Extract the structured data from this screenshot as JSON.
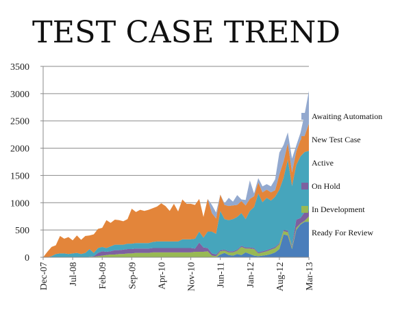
{
  "chart_data": {
    "type": "area",
    "stacked": true,
    "title": "TEST CASE TREND",
    "xlabel": "",
    "ylabel": "",
    "ylim": [
      0,
      3500
    ],
    "yticks": [
      0,
      500,
      1000,
      1500,
      2000,
      2500,
      3000,
      3500
    ],
    "grid": "horizontal",
    "legend_position": "right",
    "x_tick_labels": [
      "Dec-07",
      "Jul-08",
      "Feb-09",
      "Sep-09",
      "Apr-10",
      "Nov-10",
      "Jun-11",
      "Jan-12",
      "Aug-12",
      "Mar-13"
    ],
    "x_tick_index": [
      0,
      7,
      14,
      21,
      28,
      35,
      42,
      49,
      56,
      63
    ],
    "x": [
      "Dec-07",
      "Jan-08",
      "Feb-08",
      "Mar-08",
      "Apr-08",
      "May-08",
      "Jun-08",
      "Jul-08",
      "Aug-08",
      "Sep-08",
      "Oct-08",
      "Nov-08",
      "Dec-08",
      "Jan-09",
      "Feb-09",
      "Mar-09",
      "Apr-09",
      "May-09",
      "Jun-09",
      "Jul-09",
      "Aug-09",
      "Sep-09",
      "Oct-09",
      "Nov-09",
      "Dec-09",
      "Jan-10",
      "Feb-10",
      "Mar-10",
      "Apr-10",
      "May-10",
      "Jun-10",
      "Jul-10",
      "Aug-10",
      "Sep-10",
      "Oct-10",
      "Nov-10",
      "Dec-10",
      "Jan-11",
      "Feb-11",
      "Mar-11",
      "Apr-11",
      "May-11",
      "Jun-11",
      "Jul-11",
      "Aug-11",
      "Sep-11",
      "Oct-11",
      "Nov-11",
      "Dec-11",
      "Jan-12",
      "Feb-12",
      "Mar-12",
      "Apr-12",
      "May-12",
      "Jun-12",
      "Jul-12",
      "Aug-12",
      "Sep-12",
      "Oct-12",
      "Nov-12",
      "Dec-12",
      "Jan-13",
      "Feb-13",
      "Mar-13"
    ],
    "series": [
      {
        "name": "Ready For Review",
        "color": "#4a7ebb",
        "values": [
          0,
          0,
          0,
          0,
          0,
          0,
          0,
          0,
          0,
          0,
          0,
          0,
          0,
          0,
          0,
          0,
          0,
          0,
          0,
          0,
          0,
          0,
          0,
          0,
          0,
          0,
          0,
          0,
          0,
          0,
          0,
          0,
          0,
          0,
          0,
          0,
          0,
          0,
          0,
          0,
          0,
          0,
          50,
          80,
          40,
          30,
          60,
          40,
          90,
          60,
          30,
          20,
          30,
          40,
          60,
          90,
          150,
          420,
          400,
          150,
          500,
          600,
          650,
          650
        ]
      },
      {
        "name": "In Development",
        "color": "#98b954",
        "values": [
          0,
          0,
          0,
          0,
          0,
          0,
          0,
          0,
          0,
          0,
          0,
          10,
          10,
          20,
          30,
          40,
          50,
          50,
          60,
          60,
          70,
          70,
          80,
          80,
          80,
          80,
          90,
          90,
          90,
          90,
          90,
          90,
          90,
          90,
          90,
          90,
          100,
          100,
          100,
          110,
          30,
          20,
          60,
          40,
          50,
          60,
          60,
          150,
          70,
          100,
          120,
          50,
          60,
          70,
          80,
          80,
          90,
          60,
          60,
          30,
          40,
          20,
          20,
          100
        ]
      },
      {
        "name": "On Hold",
        "color": "#7d60a0",
        "values": [
          0,
          0,
          0,
          0,
          0,
          0,
          0,
          0,
          0,
          0,
          0,
          0,
          10,
          60,
          80,
          60,
          60,
          80,
          70,
          80,
          80,
          80,
          80,
          80,
          80,
          80,
          80,
          80,
          80,
          80,
          80,
          80,
          80,
          80,
          80,
          80,
          60,
          170,
          80,
          60,
          40,
          30,
          20,
          20,
          20,
          20,
          20,
          20,
          20,
          20,
          20,
          20,
          20,
          20,
          20,
          20,
          20,
          20,
          30,
          30,
          150,
          100,
          160,
          100
        ]
      },
      {
        "name": "Active",
        "color": "#46a5bc",
        "values": [
          0,
          0,
          20,
          60,
          70,
          70,
          60,
          70,
          80,
          60,
          80,
          140,
          60,
          90,
          80,
          70,
          90,
          100,
          100,
          90,
          100,
          100,
          100,
          100,
          100,
          100,
          110,
          120,
          120,
          120,
          120,
          120,
          120,
          160,
          160,
          160,
          180,
          200,
          180,
          300,
          400,
          380,
          720,
          560,
          570,
          590,
          600,
          600,
          520,
          670,
          750,
          1080,
          900,
          960,
          880,
          920,
          980,
          960,
          1300,
          1100,
          1000,
          1130,
          1100,
          1100
        ]
      },
      {
        "name": "New Test Case",
        "color": "#e3853a",
        "values": [
          0,
          100,
          170,
          160,
          320,
          270,
          310,
          240,
          320,
          260,
          310,
          250,
          340,
          350,
          350,
          510,
          430,
          460,
          450,
          430,
          450,
          640,
          570,
          610,
          590,
          610,
          620,
          640,
          700,
          650,
          560,
          690,
          550,
          730,
          650,
          650,
          620,
          600,
          380,
          600,
          340,
          280,
          300,
          260,
          260,
          250,
          220,
          220,
          250,
          220,
          200,
          200,
          180,
          150,
          150,
          120,
          280,
          300,
          300,
          250,
          250,
          300,
          300,
          500
        ]
      },
      {
        "name": "Awaiting Automation",
        "color": "#93a9cf",
        "values": [
          0,
          0,
          0,
          0,
          0,
          0,
          0,
          0,
          0,
          0,
          0,
          0,
          0,
          0,
          0,
          0,
          0,
          0,
          0,
          0,
          0,
          0,
          0,
          0,
          0,
          0,
          0,
          0,
          0,
          0,
          0,
          0,
          0,
          0,
          0,
          0,
          0,
          0,
          0,
          0,
          150,
          110,
          0,
          30,
          150,
          70,
          180,
          30,
          100,
          340,
          50,
          80,
          110,
          100,
          110,
          200,
          400,
          300,
          200,
          250,
          110,
          130,
          400,
          600
        ]
      }
    ]
  }
}
